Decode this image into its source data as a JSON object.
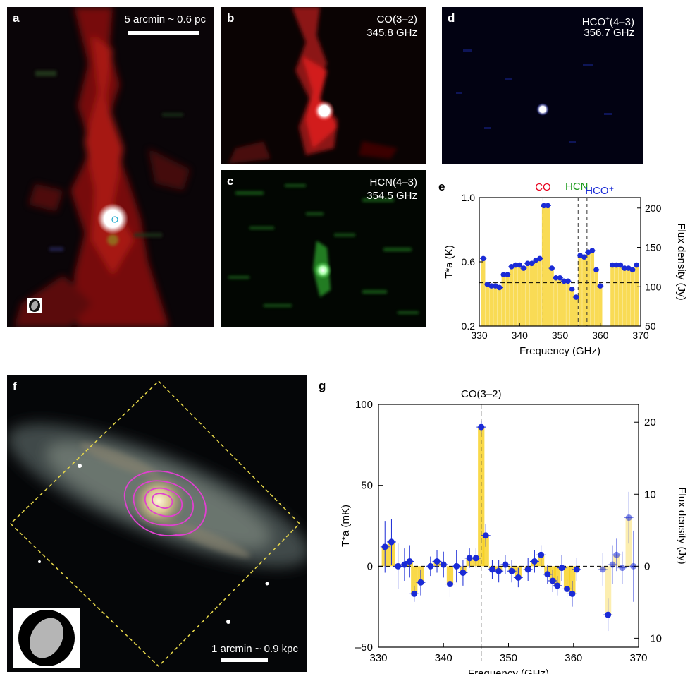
{
  "panels": {
    "a": {
      "label": "a",
      "scale_text": "5 arcmin ~ 0.6 pc"
    },
    "b": {
      "label": "b",
      "line": "CO(3–2)",
      "freq": "345.8 GHz"
    },
    "c": {
      "label": "c",
      "line": "HCN(4–3)",
      "freq": "354.5 GHz"
    },
    "d": {
      "label": "d",
      "line_main": "HCO",
      "line_sup": "+",
      "line_rest": "(4–3)",
      "freq": "356.7 GHz"
    },
    "e": {
      "label": "e"
    },
    "f": {
      "label": "f",
      "scale_text": "1 arcmin ~ 0.9 kpc"
    },
    "g": {
      "label": "g"
    }
  },
  "chart_data": [
    {
      "id": "e",
      "type": "scatter",
      "line_labels": [
        {
          "text": "CO",
          "x": 345.8,
          "color": "#e8001c"
        },
        {
          "text": "HCN",
          "x": 354.5,
          "color": "#1a9a1a"
        },
        {
          "text": "HCO⁺",
          "x": 356.7,
          "color": "#1a2bd6"
        }
      ],
      "xlabel": "Frequency (GHz)",
      "ylabel_left": "T*a (K)",
      "ylabel_right": "Flux density (Jy)",
      "xlim": [
        330,
        370
      ],
      "ylim": [
        0.2,
        1.0
      ],
      "xticks": [
        330,
        340,
        350,
        360,
        370
      ],
      "yticks": [
        0.2,
        0.6,
        1.0
      ],
      "yticks_right": [
        50,
        100,
        150,
        200
      ],
      "baseline": 0.47,
      "points": [
        [
          331,
          0.62
        ],
        [
          332,
          0.46
        ],
        [
          333,
          0.45
        ],
        [
          334,
          0.45
        ],
        [
          335,
          0.44
        ],
        [
          336,
          0.52
        ],
        [
          337,
          0.52
        ],
        [
          338,
          0.57
        ],
        [
          339,
          0.58
        ],
        [
          340,
          0.58
        ],
        [
          341,
          0.56
        ],
        [
          342,
          0.59
        ],
        [
          343,
          0.59
        ],
        [
          344,
          0.61
        ],
        [
          345,
          0.62
        ],
        [
          346,
          0.95
        ],
        [
          347,
          0.95
        ],
        [
          348,
          0.56
        ],
        [
          349,
          0.5
        ],
        [
          350,
          0.5
        ],
        [
          351,
          0.48
        ],
        [
          352,
          0.48
        ],
        [
          353,
          0.43
        ],
        [
          354,
          0.38
        ],
        [
          355,
          0.64
        ],
        [
          356,
          0.63
        ],
        [
          357,
          0.66
        ],
        [
          358,
          0.67
        ],
        [
          359,
          0.55
        ],
        [
          360,
          0.45
        ],
        [
          363,
          0.58
        ],
        [
          364,
          0.58
        ],
        [
          365,
          0.58
        ],
        [
          366,
          0.56
        ],
        [
          367,
          0.56
        ],
        [
          368,
          0.55
        ],
        [
          369,
          0.58
        ]
      ]
    },
    {
      "id": "g",
      "type": "scatter",
      "title": "CO(3–2)",
      "xlabel": "Frequency (GHz)",
      "ylabel_left": "T*a (mK)",
      "ylabel_right": "Flux density (Jy)",
      "xlim": [
        330,
        370
      ],
      "ylim": [
        -50,
        100
      ],
      "xticks": [
        330,
        340,
        350,
        360,
        370
      ],
      "yticks": [
        -50,
        0,
        50,
        100
      ],
      "yticks_right": [
        -10,
        0,
        10,
        20
      ],
      "line_x": 345.8,
      "points": [
        [
          331,
          12,
          16
        ],
        [
          332,
          15,
          14
        ],
        [
          333,
          0,
          14
        ],
        [
          334,
          1,
          10
        ],
        [
          334.8,
          3,
          10
        ],
        [
          335.5,
          -17,
          5
        ],
        [
          336.5,
          -10,
          8
        ],
        [
          338,
          0,
          6
        ],
        [
          339,
          3,
          7
        ],
        [
          340,
          1,
          8
        ],
        [
          341,
          -11,
          8
        ],
        [
          342,
          0,
          10
        ],
        [
          343,
          -4,
          8
        ],
        [
          344,
          5,
          6
        ],
        [
          345,
          5,
          6
        ],
        [
          345.8,
          86,
          4
        ],
        [
          346.5,
          19,
          7
        ],
        [
          347.5,
          -2,
          6
        ],
        [
          348.5,
          -3,
          7
        ],
        [
          349.5,
          1,
          6
        ],
        [
          350.5,
          -3,
          7
        ],
        [
          351.5,
          -7,
          6
        ],
        [
          353,
          -2,
          7
        ],
        [
          354,
          3,
          7
        ],
        [
          355,
          7,
          6
        ],
        [
          356,
          -5,
          6
        ],
        [
          356.8,
          -9,
          7
        ],
        [
          357.5,
          -12,
          6
        ],
        [
          358.2,
          -1,
          8
        ],
        [
          359,
          -14,
          6
        ],
        [
          359.8,
          -17,
          8
        ],
        [
          360.5,
          -2,
          7
        ],
        [
          364.5,
          -2,
          10
        ],
        [
          365.3,
          -30,
          10
        ],
        [
          366,
          1,
          12
        ],
        [
          366.6,
          7,
          10
        ],
        [
          367.5,
          -1,
          10
        ],
        [
          368.5,
          30,
          16
        ],
        [
          369.2,
          0,
          22
        ]
      ]
    }
  ]
}
